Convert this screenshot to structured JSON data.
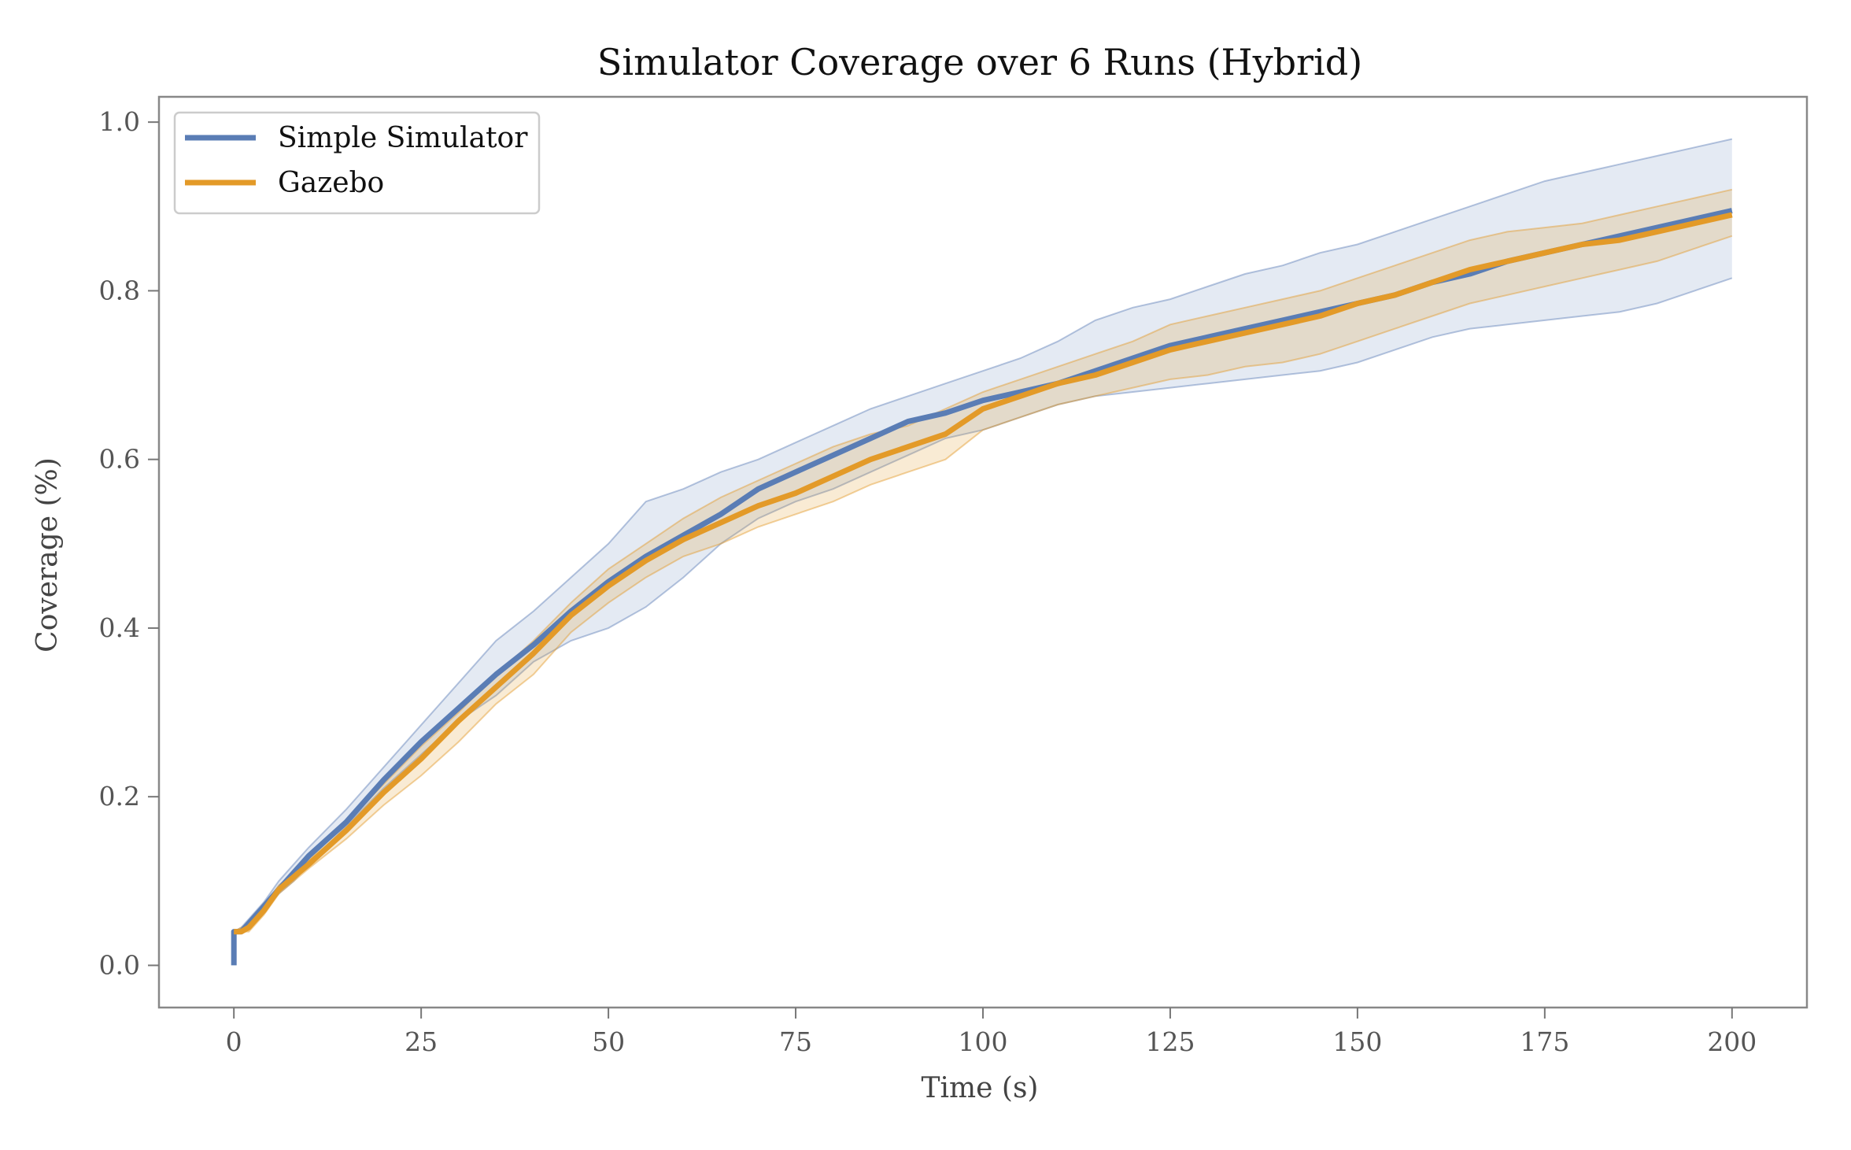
{
  "chart_data": {
    "type": "line",
    "title": "Simulator Coverage over 6 Runs (Hybrid)",
    "xlabel": "Time (s)",
    "ylabel": "Coverage (%)",
    "xlim": [
      -10,
      210
    ],
    "ylim": [
      -0.05,
      1.03
    ],
    "xticks": [
      0,
      25,
      50,
      75,
      100,
      125,
      150,
      175,
      200
    ],
    "xtick_labels": [
      "0",
      "25",
      "50",
      "75",
      "100",
      "125",
      "150",
      "175",
      "200"
    ],
    "yticks": [
      0.0,
      0.2,
      0.4,
      0.6,
      0.8,
      1.0
    ],
    "ytick_labels": [
      "0.0",
      "0.2",
      "0.4",
      "0.6",
      "0.8",
      "1.0"
    ],
    "grid": false,
    "legend_position": "top-left",
    "x": [
      0,
      1,
      2,
      4,
      6,
      8,
      10,
      15,
      20,
      25,
      30,
      35,
      40,
      45,
      50,
      55,
      60,
      65,
      70,
      75,
      80,
      85,
      90,
      95,
      100,
      105,
      110,
      115,
      120,
      125,
      130,
      135,
      140,
      145,
      150,
      155,
      160,
      165,
      170,
      175,
      180,
      185,
      190,
      195,
      200
    ],
    "series": [
      {
        "name": "Simple Simulator",
        "color": "#5a7db5",
        "mean": [
          0.04,
          0.04,
          0.05,
          0.07,
          0.09,
          0.11,
          0.13,
          0.17,
          0.22,
          0.265,
          0.305,
          0.345,
          0.38,
          0.42,
          0.455,
          0.485,
          0.51,
          0.535,
          0.565,
          0.585,
          0.605,
          0.625,
          0.645,
          0.655,
          0.67,
          0.68,
          0.69,
          0.705,
          0.72,
          0.735,
          0.745,
          0.755,
          0.765,
          0.775,
          0.785,
          0.795,
          0.81,
          0.82,
          0.835,
          0.845,
          0.855,
          0.865,
          0.875,
          0.885,
          0.895
        ],
        "upper": [
          0.04,
          0.045,
          0.055,
          0.075,
          0.1,
          0.12,
          0.14,
          0.185,
          0.235,
          0.285,
          0.335,
          0.385,
          0.42,
          0.46,
          0.5,
          0.55,
          0.565,
          0.585,
          0.6,
          0.62,
          0.64,
          0.66,
          0.675,
          0.69,
          0.705,
          0.72,
          0.74,
          0.765,
          0.78,
          0.79,
          0.805,
          0.82,
          0.83,
          0.845,
          0.855,
          0.87,
          0.885,
          0.9,
          0.915,
          0.93,
          0.94,
          0.95,
          0.96,
          0.97,
          0.98
        ],
        "lower": [
          0.04,
          0.04,
          0.045,
          0.065,
          0.085,
          0.1,
          0.12,
          0.165,
          0.21,
          0.25,
          0.29,
          0.32,
          0.36,
          0.385,
          0.4,
          0.425,
          0.46,
          0.5,
          0.53,
          0.55,
          0.565,
          0.585,
          0.605,
          0.625,
          0.635,
          0.65,
          0.665,
          0.675,
          0.68,
          0.685,
          0.69,
          0.695,
          0.7,
          0.705,
          0.715,
          0.73,
          0.745,
          0.755,
          0.76,
          0.765,
          0.77,
          0.775,
          0.785,
          0.8,
          0.815
        ]
      },
      {
        "name": "Gazebo",
        "color": "#e39a28",
        "mean": [
          0.04,
          0.04,
          0.045,
          0.065,
          0.09,
          0.105,
          0.12,
          0.16,
          0.205,
          0.245,
          0.29,
          0.33,
          0.37,
          0.415,
          0.45,
          0.48,
          0.505,
          0.525,
          0.545,
          0.56,
          0.58,
          0.6,
          0.615,
          0.63,
          0.66,
          0.675,
          0.69,
          0.7,
          0.715,
          0.73,
          0.74,
          0.75,
          0.76,
          0.77,
          0.785,
          0.795,
          0.81,
          0.825,
          0.835,
          0.845,
          0.855,
          0.86,
          0.87,
          0.88,
          0.89
        ],
        "upper": [
          0.04,
          0.045,
          0.05,
          0.07,
          0.095,
          0.11,
          0.125,
          0.17,
          0.215,
          0.26,
          0.3,
          0.345,
          0.385,
          0.43,
          0.47,
          0.5,
          0.53,
          0.555,
          0.575,
          0.595,
          0.615,
          0.63,
          0.64,
          0.66,
          0.68,
          0.695,
          0.71,
          0.725,
          0.74,
          0.76,
          0.77,
          0.78,
          0.79,
          0.8,
          0.815,
          0.83,
          0.845,
          0.86,
          0.87,
          0.875,
          0.88,
          0.89,
          0.9,
          0.91,
          0.92
        ],
        "lower": [
          0.04,
          0.04,
          0.04,
          0.06,
          0.085,
          0.1,
          0.115,
          0.15,
          0.19,
          0.225,
          0.265,
          0.31,
          0.345,
          0.395,
          0.43,
          0.46,
          0.485,
          0.5,
          0.52,
          0.535,
          0.55,
          0.57,
          0.585,
          0.6,
          0.635,
          0.65,
          0.665,
          0.675,
          0.685,
          0.695,
          0.7,
          0.71,
          0.715,
          0.725,
          0.74,
          0.755,
          0.77,
          0.785,
          0.795,
          0.805,
          0.815,
          0.825,
          0.835,
          0.85,
          0.865
        ]
      }
    ]
  }
}
